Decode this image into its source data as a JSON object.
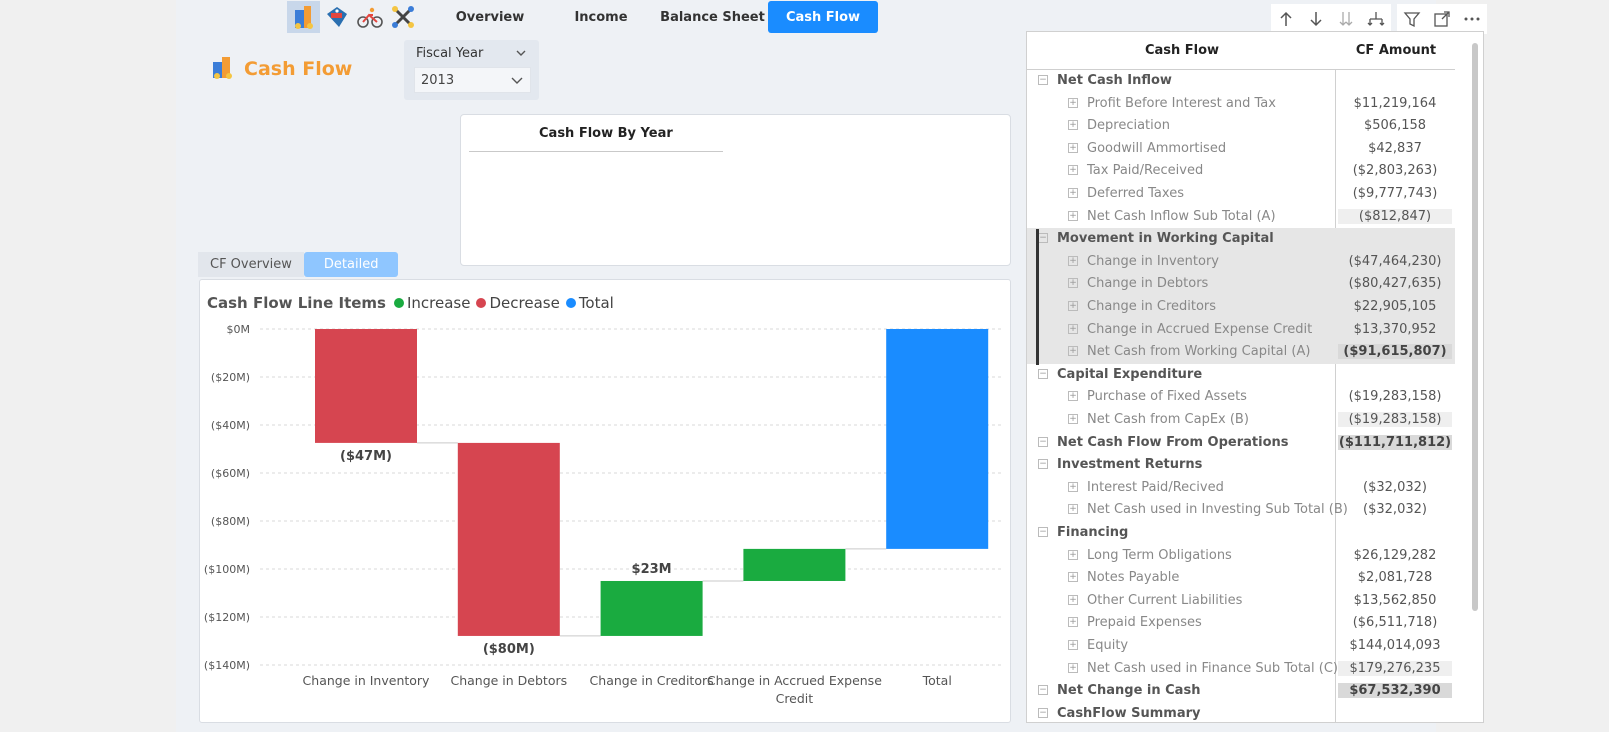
{
  "nav": {
    "icons": [
      "buildings-coins-icon",
      "sales-tag-icon",
      "cyclist-icon",
      "tools-cross-icon"
    ],
    "tabs": [
      {
        "label": "Overview",
        "active": false
      },
      {
        "label": "Income",
        "active": false
      },
      {
        "label": "Balance Sheet",
        "active": false
      },
      {
        "label": "Cash Flow",
        "active": true
      }
    ]
  },
  "toolbar": [
    "drill-up-icon",
    "drill-down-icon",
    "expand-all-icon",
    "expand-hierarchy-icon",
    "filter-icon",
    "focus-mode-icon",
    "more-options-icon"
  ],
  "page": {
    "title": "Cash Flow",
    "accent": "#f39c34"
  },
  "slicer": {
    "header": "Fiscal Year",
    "value": "2013"
  },
  "cf_by_year": {
    "title": "Cash Flow By Year"
  },
  "view_toggle": {
    "options": [
      "CF Overview",
      "Detailed"
    ],
    "selected": "Detailed"
  },
  "legend": {
    "title": "Cash Flow Line Items",
    "items": [
      {
        "label": "Increase",
        "color": "#1aab40"
      },
      {
        "label": "Decrease",
        "color": "#d64550"
      },
      {
        "label": "Total",
        "color": "#1a8cff"
      }
    ]
  },
  "chart_data": {
    "type": "waterfall",
    "title": "Cash Flow Line Items",
    "y_ticks": [
      "$0M",
      "($20M)",
      "($40M)",
      "($60M)",
      "($80M)",
      "($100M)",
      "($120M)",
      "($140M)"
    ],
    "ylim": [
      -140,
      0
    ],
    "unit": "$M",
    "grid": true,
    "steps": [
      {
        "category": "Change in Inventory",
        "start": 0,
        "end": -47.46,
        "kind": "decrease",
        "label": "($47M)"
      },
      {
        "category": "Change in Debtors",
        "start": -47.46,
        "end": -127.89,
        "kind": "decrease",
        "label": "($80M)"
      },
      {
        "category": "Change in Creditors",
        "start": -127.89,
        "end": -104.99,
        "kind": "increase",
        "label": "$23M"
      },
      {
        "category": "Change in Accrued Expense Credit",
        "start": -104.99,
        "end": -91.62,
        "kind": "increase",
        "label": ""
      },
      {
        "category": "Total",
        "start": 0,
        "end": -91.62,
        "kind": "total",
        "label": ""
      }
    ]
  },
  "matrix": {
    "headers": [
      "Cash Flow",
      "CF Amount"
    ],
    "rows": [
      {
        "label": "Net Cash Inflow",
        "level": 0,
        "amount": "",
        "style": ""
      },
      {
        "label": "Profit Before Interest and Tax",
        "level": 1,
        "amount": "$11,219,164",
        "style": ""
      },
      {
        "label": "Depreciation",
        "level": 1,
        "amount": "$506,158",
        "style": ""
      },
      {
        "label": "Goodwill Ammortised",
        "level": 1,
        "amount": "$42,837",
        "style": ""
      },
      {
        "label": "Tax Paid/Received",
        "level": 1,
        "amount": "($2,803,263)",
        "style": ""
      },
      {
        "label": "Deferred Taxes",
        "level": 1,
        "amount": "($9,777,743)",
        "style": ""
      },
      {
        "label": "Net Cash Inflow Sub Total (A)",
        "level": 1,
        "amount": "($812,847)",
        "style": "sub"
      },
      {
        "label": "Movement in Working Capital",
        "level": 0,
        "amount": "",
        "style": "hl"
      },
      {
        "label": "Change in Inventory",
        "level": 1,
        "amount": "($47,464,230)",
        "style": "hl"
      },
      {
        "label": "Change in Debtors",
        "level": 1,
        "amount": "($80,427,635)",
        "style": "hl"
      },
      {
        "label": "Change in Creditors",
        "level": 1,
        "amount": "$22,905,105",
        "style": "hl"
      },
      {
        "label": "Change in Accrued Expense Credit",
        "level": 1,
        "amount": "$13,370,952",
        "style": "hl"
      },
      {
        "label": "Net Cash from Working Capital (A)",
        "level": 1,
        "amount": "($91,615,807)",
        "style": "hlsub"
      },
      {
        "label": "Capital Expenditure",
        "level": 0,
        "amount": "",
        "style": ""
      },
      {
        "label": "Purchase of Fixed Assets",
        "level": 1,
        "amount": "($19,283,158)",
        "style": ""
      },
      {
        "label": "Net Cash from CapEx (B)",
        "level": 1,
        "amount": "($19,283,158)",
        "style": "sub"
      },
      {
        "label": "Net Cash Flow From Operations",
        "level": 0,
        "amount": "($111,711,812)",
        "style": "total"
      },
      {
        "label": "Investment Returns",
        "level": 0,
        "amount": "",
        "style": ""
      },
      {
        "label": "Interest Paid/Recived",
        "level": 1,
        "amount": "($32,032)",
        "style": ""
      },
      {
        "label": "Net Cash used in Investing Sub Total (B)",
        "level": 1,
        "amount": "($32,032)",
        "style": ""
      },
      {
        "label": "Financing",
        "level": 0,
        "amount": "",
        "style": ""
      },
      {
        "label": "Long Term Obligations",
        "level": 1,
        "amount": "$26,129,282",
        "style": ""
      },
      {
        "label": "Notes Payable",
        "level": 1,
        "amount": "$2,081,728",
        "style": ""
      },
      {
        "label": "Other Current Liabilities",
        "level": 1,
        "amount": "$13,562,850",
        "style": ""
      },
      {
        "label": "Prepaid Expenses",
        "level": 1,
        "amount": "($6,511,718)",
        "style": ""
      },
      {
        "label": "Equity",
        "level": 1,
        "amount": "$144,014,093",
        "style": ""
      },
      {
        "label": "Net Cash used in Finance Sub Total (C)",
        "level": 1,
        "amount": "$179,276,235",
        "style": "sub"
      },
      {
        "label": "Net Change in Cash",
        "level": 0,
        "amount": "$67,532,390",
        "style": "total"
      },
      {
        "label": "CashFlow Summary",
        "level": 0,
        "amount": "",
        "style": ""
      }
    ]
  }
}
